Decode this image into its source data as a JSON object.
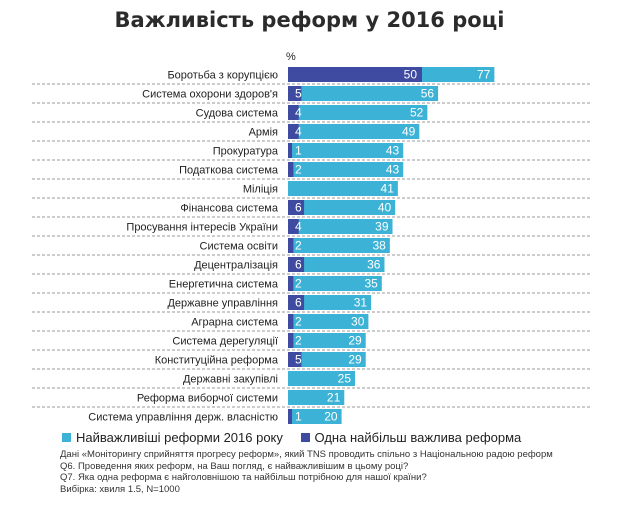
{
  "chart_data": {
    "type": "bar",
    "title": "Важливість реформ у 2016 році",
    "unit_label": "%",
    "categories": [
      "Боротьба з корупцією",
      "Система охорони здоров'я",
      "Судова система",
      "Армія",
      "Прокуратура",
      "Податкова система",
      "Міліція",
      "Фінансова система",
      "Просування інтересів України",
      "Система освіти",
      "Децентралізація",
      "Енергетична система",
      "Державне управління",
      "Аграрна система",
      "Система дерегуляції",
      "Конституційна реформа",
      "Державні закупівлі",
      "Реформа виборчої системи",
      "Система управління держ. власністю"
    ],
    "series": [
      {
        "name": "Найважливіші реформи 2016 року",
        "color": "#3cb3d6",
        "values": [
          77,
          56,
          52,
          49,
          43,
          43,
          41,
          40,
          39,
          38,
          36,
          35,
          31,
          30,
          29,
          29,
          25,
          21,
          20
        ]
      },
      {
        "name": "Одна найбільш важлива реформа",
        "color": "#3f4ba0",
        "values": [
          50,
          5,
          4,
          4,
          1,
          2,
          null,
          6,
          4,
          2,
          6,
          2,
          6,
          2,
          2,
          5,
          null,
          null,
          1
        ]
      }
    ],
    "grid": false,
    "legend_position": "bottom"
  },
  "notes": [
    "Дані «Моніторингу сприйняття прогресу реформ», який TNS проводить спільно з Національною радою реформ",
    "Q6. Проведення яких реформ, на Ваш погляд, є найважливішим в цьому році?",
    "Q7. Яка одна реформа є найголовнішою та найбільш потрібною для нашої країни?",
    "Вибірка: хвиля 1.5, N=1000"
  ]
}
